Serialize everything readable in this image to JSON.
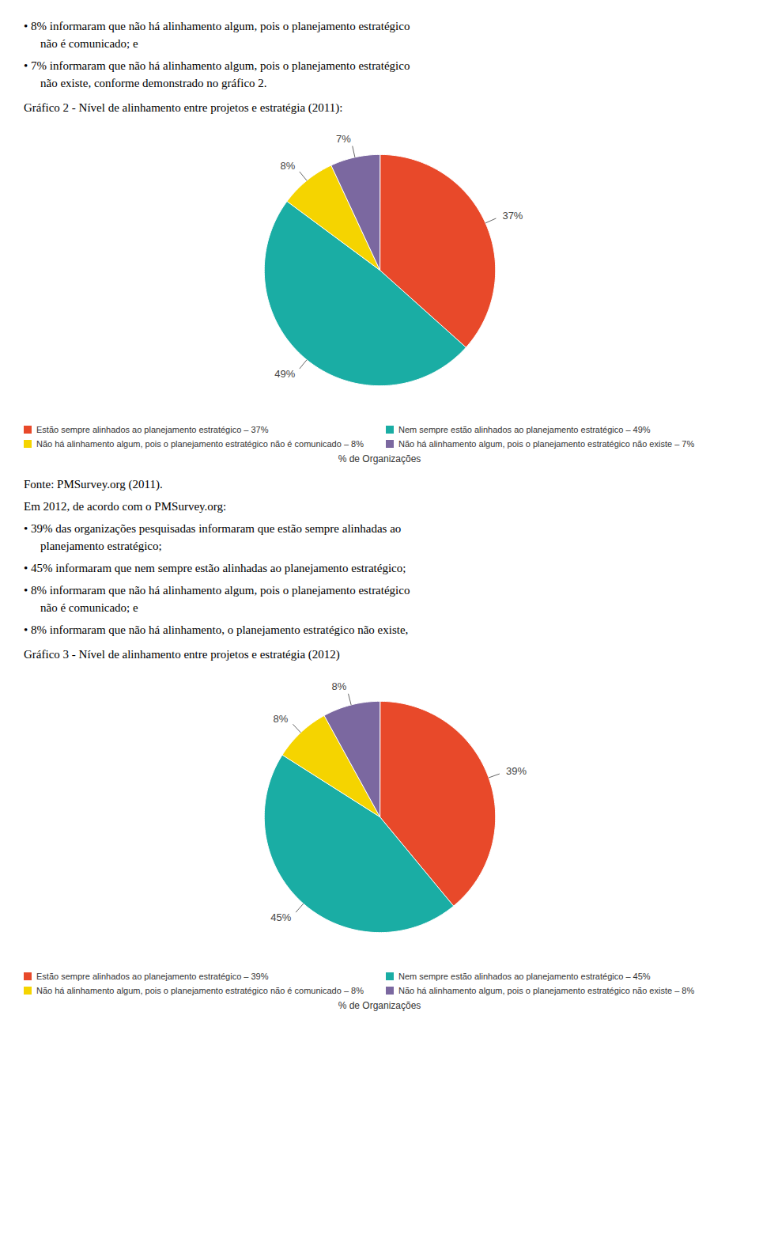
{
  "chart_data": [
    {
      "type": "pie",
      "annotations": [
        "• 8% informaram que não há alinhamento algum, pois o planejamento estratégico\nnão é comunicado; e",
        "• 7% informaram que não há alinhamento algum, pois o planejamento estratégico\nnão existe, conforme demonstrado no gráfico 2."
      ],
      "title": "Gráfico 2 - Nível de alinhamento entre projetos e estratégia (2011):",
      "categories": [
        "Estão sempre alinhados ao planejamento estratégico – 37%",
        "Nem sempre estão alinhados ao planejamento estratégico – 49%",
        "Não há alinhamento algum, pois o planejamento estratégico não é comunicado – 8%",
        "Não há alinhamento algum, pois o planejamento estratégico não existe – 7%"
      ],
      "values": [
        37,
        49,
        8,
        7
      ],
      "value_labels": [
        "37%",
        "49%",
        "8%",
        "7%"
      ],
      "colors": [
        "#E8492A",
        "#1AADA4",
        "#F5D400",
        "#7B68A0"
      ],
      "data_labels": true,
      "legend": "bottom",
      "xlabel": "% de Organizações"
    },
    {
      "type": "pie",
      "annotations": [
        "Fonte: PMSurvey.org (2011).",
        "Em 2012, de acordo com o PMSurvey.org:",
        "• 39% das organizações pesquisadas informaram que estão sempre alinhadas ao\nplanejamento estratégico;",
        "• 45% informaram que nem sempre estão alinhadas ao planejamento estratégico;",
        "• 8% informaram que não há alinhamento algum, pois o planejamento estratégico\nnão é comunicado; e",
        "• 8% informaram que não há alinhamento, o planejamento estratégico não existe,"
      ],
      "title": "Gráfico 3 - Nível de alinhamento entre projetos e estratégia (2012)",
      "categories": [
        "Estão sempre alinhados ao planejamento estratégico – 39%",
        "Nem sempre estão alinhados ao planejamento estratégico – 45%",
        "Não há alinhamento algum, pois o planejamento estratégico não é comunicado – 8%",
        "Não há alinhamento algum, pois o planejamento estratégico não existe – 8%"
      ],
      "values": [
        39,
        45,
        8,
        8
      ],
      "value_labels": [
        "39%",
        "45%",
        "8%",
        "8%"
      ],
      "colors": [
        "#E8492A",
        "#1AADA4",
        "#F5D400",
        "#7B68A0"
      ],
      "data_labels": true,
      "legend": "bottom",
      "xlabel": "% de Organizações"
    }
  ]
}
